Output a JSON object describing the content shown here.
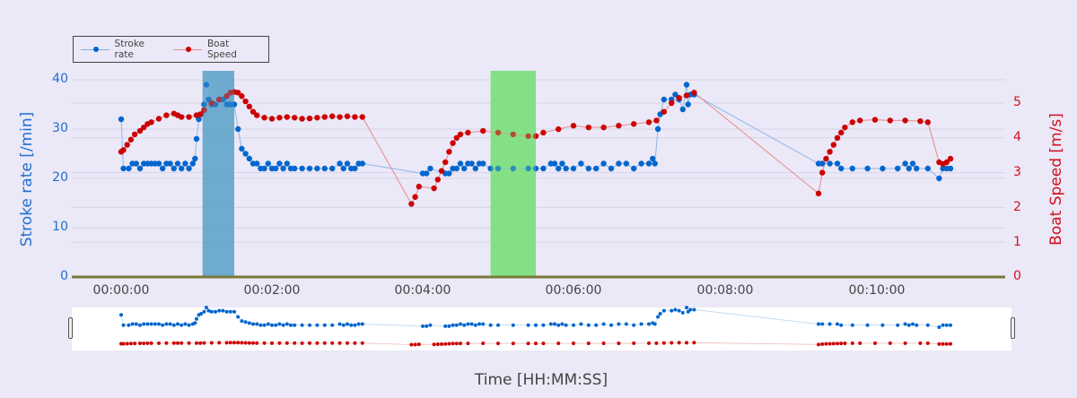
{
  "legend": {
    "items": [
      {
        "label": "Stroke rate",
        "color": "#0066cc"
      },
      {
        "label": "Boat Speed",
        "color": "#cc0000"
      }
    ]
  },
  "axes": {
    "y_left": {
      "title": "Stroke rate [/min]",
      "ticks": [
        "0",
        "10",
        "20",
        "30",
        "40"
      ],
      "color": "#1f6fd0"
    },
    "y_right": {
      "title": "Boat Speed [m/s]",
      "ticks": [
        "0",
        "1",
        "2",
        "3",
        "4",
        "5"
      ],
      "color": "#d01020"
    },
    "x": {
      "title": "Time [HH:MM:SS]",
      "ticks": [
        "00:00:00",
        "00:02:00",
        "00:04:00",
        "00:06:00",
        "00:08:00",
        "00:10:00"
      ]
    }
  },
  "chart_data": {
    "type": "scatter",
    "title": "",
    "xlabel": "Time [HH:MM:SS]",
    "ylabel": "Stroke rate [/min]",
    "y2label": "Boat Speed [m/s]",
    "ylim": [
      0,
      42
    ],
    "y2lim": [
      0,
      5.7
    ],
    "xlim_min": [
      -0.65,
      11.7
    ],
    "grid": true,
    "legend_position": "top-left",
    "x_unit": "minutes",
    "highlight_regions": [
      {
        "x0_min": 1.08,
        "x1_min": 1.5,
        "color": "#5ba3c9"
      },
      {
        "x0_min": 4.9,
        "x1_min": 5.5,
        "color": "#7de07d"
      }
    ],
    "series": [
      {
        "name": "Stroke rate",
        "axis": "left",
        "color": "#0066cc",
        "points": [
          [
            0.0,
            32
          ],
          [
            0.03,
            22
          ],
          [
            0.1,
            22
          ],
          [
            0.15,
            23
          ],
          [
            0.2,
            23
          ],
          [
            0.25,
            22
          ],
          [
            0.3,
            23
          ],
          [
            0.35,
            23
          ],
          [
            0.4,
            23
          ],
          [
            0.45,
            23
          ],
          [
            0.5,
            23
          ],
          [
            0.55,
            22
          ],
          [
            0.6,
            23
          ],
          [
            0.65,
            23
          ],
          [
            0.7,
            22
          ],
          [
            0.75,
            23
          ],
          [
            0.8,
            22
          ],
          [
            0.85,
            23
          ],
          [
            0.9,
            22
          ],
          [
            0.95,
            23
          ],
          [
            0.98,
            24
          ],
          [
            1.0,
            28
          ],
          [
            1.03,
            32
          ],
          [
            1.06,
            33
          ],
          [
            1.1,
            35
          ],
          [
            1.13,
            39
          ],
          [
            1.16,
            36
          ],
          [
            1.2,
            35
          ],
          [
            1.25,
            35
          ],
          [
            1.3,
            36
          ],
          [
            1.35,
            36
          ],
          [
            1.4,
            35
          ],
          [
            1.45,
            35
          ],
          [
            1.5,
            35
          ],
          [
            1.55,
            30
          ],
          [
            1.6,
            26
          ],
          [
            1.65,
            25
          ],
          [
            1.7,
            24
          ],
          [
            1.75,
            23
          ],
          [
            1.8,
            23
          ],
          [
            1.85,
            22
          ],
          [
            1.9,
            22
          ],
          [
            1.95,
            23
          ],
          [
            2.0,
            22
          ],
          [
            2.05,
            22
          ],
          [
            2.1,
            23
          ],
          [
            2.15,
            22
          ],
          [
            2.2,
            23
          ],
          [
            2.25,
            22
          ],
          [
            2.3,
            22
          ],
          [
            2.4,
            22
          ],
          [
            2.5,
            22
          ],
          [
            2.6,
            22
          ],
          [
            2.7,
            22
          ],
          [
            2.8,
            22
          ],
          [
            2.9,
            23
          ],
          [
            2.95,
            22
          ],
          [
            3.0,
            23
          ],
          [
            3.05,
            22
          ],
          [
            3.1,
            22
          ],
          [
            3.15,
            23
          ],
          [
            3.2,
            23
          ],
          [
            4.0,
            21
          ],
          [
            4.05,
            21
          ],
          [
            4.1,
            22
          ],
          [
            4.3,
            21
          ],
          [
            4.35,
            21
          ],
          [
            4.4,
            22
          ],
          [
            4.45,
            22
          ],
          [
            4.5,
            23
          ],
          [
            4.55,
            22
          ],
          [
            4.6,
            23
          ],
          [
            4.65,
            23
          ],
          [
            4.7,
            22
          ],
          [
            4.75,
            23
          ],
          [
            4.8,
            23
          ],
          [
            4.9,
            22
          ],
          [
            5.0,
            22
          ],
          [
            5.2,
            22
          ],
          [
            5.4,
            22
          ],
          [
            5.5,
            22
          ],
          [
            5.6,
            22
          ],
          [
            5.7,
            23
          ],
          [
            5.75,
            23
          ],
          [
            5.8,
            22
          ],
          [
            5.85,
            23
          ],
          [
            5.9,
            22
          ],
          [
            6.0,
            22
          ],
          [
            6.1,
            23
          ],
          [
            6.2,
            22
          ],
          [
            6.3,
            22
          ],
          [
            6.4,
            23
          ],
          [
            6.5,
            22
          ],
          [
            6.6,
            23
          ],
          [
            6.7,
            23
          ],
          [
            6.8,
            22
          ],
          [
            6.9,
            23
          ],
          [
            7.0,
            23
          ],
          [
            7.05,
            24
          ],
          [
            7.08,
            23
          ],
          [
            7.12,
            30
          ],
          [
            7.15,
            33
          ],
          [
            7.2,
            36
          ],
          [
            7.3,
            36
          ],
          [
            7.35,
            37
          ],
          [
            7.4,
            36
          ],
          [
            7.45,
            34
          ],
          [
            7.5,
            39
          ],
          [
            7.52,
            35
          ],
          [
            7.55,
            37
          ],
          [
            7.6,
            37
          ],
          [
            9.25,
            23
          ],
          [
            9.3,
            23
          ],
          [
            9.4,
            23
          ],
          [
            9.5,
            23
          ],
          [
            9.55,
            22
          ],
          [
            9.7,
            22
          ],
          [
            9.9,
            22
          ],
          [
            10.1,
            22
          ],
          [
            10.3,
            22
          ],
          [
            10.4,
            23
          ],
          [
            10.45,
            22
          ],
          [
            10.5,
            23
          ],
          [
            10.55,
            22
          ],
          [
            10.7,
            22
          ],
          [
            10.85,
            20
          ],
          [
            10.9,
            22
          ],
          [
            10.95,
            22
          ],
          [
            11.0,
            22
          ]
        ]
      },
      {
        "name": "Boat Speed",
        "axis": "right",
        "color": "#cc0000",
        "points": [
          [
            0.0,
            3.6
          ],
          [
            0.03,
            3.65
          ],
          [
            0.08,
            3.8
          ],
          [
            0.13,
            3.95
          ],
          [
            0.18,
            4.1
          ],
          [
            0.25,
            4.2
          ],
          [
            0.3,
            4.3
          ],
          [
            0.35,
            4.4
          ],
          [
            0.4,
            4.45
          ],
          [
            0.5,
            4.55
          ],
          [
            0.6,
            4.65
          ],
          [
            0.7,
            4.7
          ],
          [
            0.75,
            4.65
          ],
          [
            0.8,
            4.6
          ],
          [
            0.9,
            4.6
          ],
          [
            1.0,
            4.65
          ],
          [
            1.05,
            4.68
          ],
          [
            1.1,
            4.8
          ],
          [
            1.2,
            5.0
          ],
          [
            1.3,
            5.1
          ],
          [
            1.4,
            5.2
          ],
          [
            1.45,
            5.3
          ],
          [
            1.5,
            5.32
          ],
          [
            1.55,
            5.3
          ],
          [
            1.6,
            5.2
          ],
          [
            1.65,
            5.05
          ],
          [
            1.7,
            4.9
          ],
          [
            1.75,
            4.75
          ],
          [
            1.8,
            4.65
          ],
          [
            1.9,
            4.58
          ],
          [
            2.0,
            4.55
          ],
          [
            2.1,
            4.58
          ],
          [
            2.2,
            4.6
          ],
          [
            2.3,
            4.58
          ],
          [
            2.4,
            4.55
          ],
          [
            2.5,
            4.56
          ],
          [
            2.6,
            4.58
          ],
          [
            2.7,
            4.6
          ],
          [
            2.8,
            4.62
          ],
          [
            2.9,
            4.6
          ],
          [
            3.0,
            4.62
          ],
          [
            3.1,
            4.6
          ],
          [
            3.2,
            4.6
          ],
          [
            3.85,
            2.1
          ],
          [
            3.9,
            2.3
          ],
          [
            3.95,
            2.6
          ],
          [
            4.15,
            2.55
          ],
          [
            4.2,
            2.8
          ],
          [
            4.25,
            3.05
          ],
          [
            4.3,
            3.3
          ],
          [
            4.35,
            3.6
          ],
          [
            4.4,
            3.85
          ],
          [
            4.45,
            4.0
          ],
          [
            4.5,
            4.1
          ],
          [
            4.6,
            4.15
          ],
          [
            4.8,
            4.2
          ],
          [
            5.0,
            4.15
          ],
          [
            5.2,
            4.1
          ],
          [
            5.4,
            4.05
          ],
          [
            5.5,
            4.05
          ],
          [
            5.6,
            4.15
          ],
          [
            5.8,
            4.25
          ],
          [
            6.0,
            4.35
          ],
          [
            6.2,
            4.3
          ],
          [
            6.4,
            4.3
          ],
          [
            6.6,
            4.35
          ],
          [
            6.8,
            4.4
          ],
          [
            7.0,
            4.45
          ],
          [
            7.1,
            4.5
          ],
          [
            7.2,
            4.75
          ],
          [
            7.3,
            5.0
          ],
          [
            7.4,
            5.15
          ],
          [
            7.5,
            5.22
          ],
          [
            7.6,
            5.3
          ],
          [
            9.25,
            2.4
          ],
          [
            9.3,
            3.0
          ],
          [
            9.35,
            3.4
          ],
          [
            9.4,
            3.6
          ],
          [
            9.45,
            3.8
          ],
          [
            9.5,
            4.0
          ],
          [
            9.55,
            4.15
          ],
          [
            9.6,
            4.3
          ],
          [
            9.7,
            4.45
          ],
          [
            9.8,
            4.5
          ],
          [
            10.0,
            4.52
          ],
          [
            10.2,
            4.5
          ],
          [
            10.4,
            4.5
          ],
          [
            10.6,
            4.48
          ],
          [
            10.7,
            4.45
          ],
          [
            10.85,
            3.3
          ],
          [
            10.9,
            3.25
          ],
          [
            10.95,
            3.3
          ],
          [
            11.0,
            3.4
          ]
        ]
      }
    ]
  }
}
